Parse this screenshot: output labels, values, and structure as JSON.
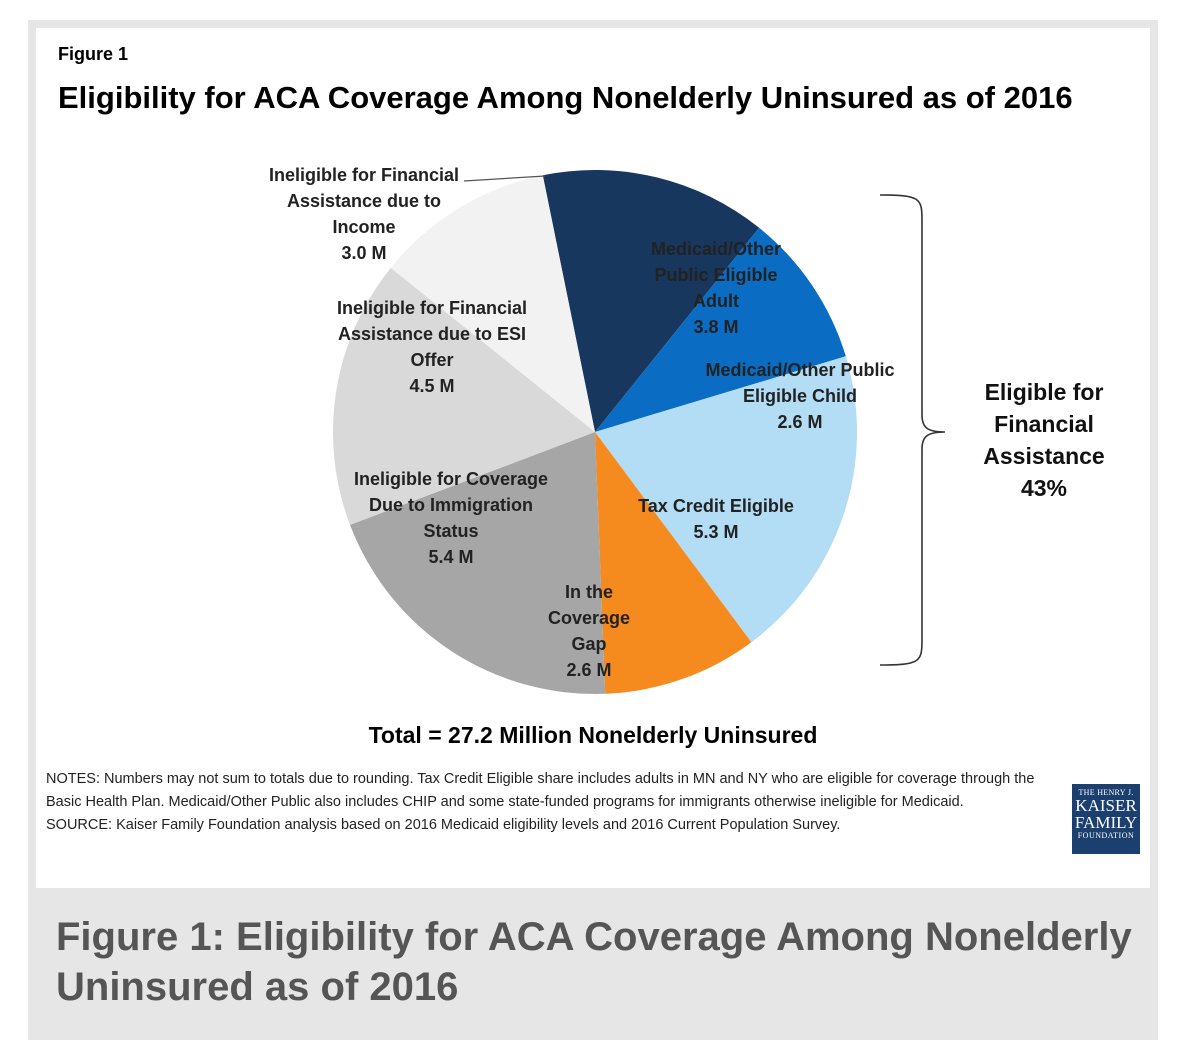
{
  "figure_label": "Figure 1",
  "caption": "Figure 1: Eligibility for ACA Coverage Among Nonelderly Uninsured as of 2016",
  "chart_data": {
    "type": "pie",
    "title": "Eligibility for ACA Coverage Among Nonelderly Uninsured as of 2016",
    "unit": "M",
    "slices": [
      {
        "id": "medicaid-adult",
        "label_lines": [
          "Medicaid/Other",
          "Public Eligible",
          "Adult"
        ],
        "value_text": "3.8 M",
        "value": 3.8,
        "color": "#17375e",
        "text_color": "#ffffff"
      },
      {
        "id": "medicaid-child",
        "label_lines": [
          "Medicaid/Other Public",
          "Eligible Child"
        ],
        "value_text": "2.6 M",
        "value": 2.6,
        "color": "#0a6cc2",
        "text_color": "#1f1f1f"
      },
      {
        "id": "tax-credit",
        "label_lines": [
          "Tax Credit Eligible"
        ],
        "value_text": "5.3 M",
        "value": 5.3,
        "color": "#b3dcf5",
        "text_color": "#1f1f1f"
      },
      {
        "id": "coverage-gap",
        "label_lines": [
          "In the",
          "Coverage",
          "Gap"
        ],
        "value_text": "2.6 M",
        "value": 2.6,
        "color": "#f58a1f",
        "text_color": "#1f1f1f"
      },
      {
        "id": "immigration",
        "label_lines": [
          "Ineligible for Coverage",
          "Due to Immigration",
          "Status"
        ],
        "value_text": "5.4 M",
        "value": 5.4,
        "color": "#a6a6a6",
        "text_color": "#1f1f1f"
      },
      {
        "id": "esi-offer",
        "label_lines": [
          "Ineligible for Financial",
          "Assistance due to ESI",
          "Offer"
        ],
        "value_text": "4.5 M",
        "value": 4.5,
        "color": "#d9d9d9",
        "text_color": "#1f1f1f"
      },
      {
        "id": "income",
        "label_lines": [
          "Ineligible for Financial",
          "Assistance due to",
          "Income"
        ],
        "value_text": "3.0 M",
        "value": 3.0,
        "color": "#f2f2f2",
        "text_color": "#1f1f1f"
      }
    ],
    "bracket_label_lines": [
      "Eligible for",
      "Financial",
      "Assistance"
    ],
    "bracket_value": "43%",
    "total": "Total = 27.2 Million Nonelderly Uninsured"
  },
  "notes": [
    "NOTES: Numbers may not sum to totals due to rounding.  Tax Credit Eligible share includes adults in MN and NY who are eligible for coverage through the Basic Health Plan. Medicaid/Other Public also includes CHIP and some state-funded programs for immigrants otherwise ineligible for Medicaid.",
    "SOURCE: Kaiser Family Foundation  analysis based on 2016 Medicaid eligibility levels and 2016 Current Population Survey."
  ],
  "logo": {
    "line1": "THE HENRY J.",
    "line2": "KAISER",
    "line3": "FAMILY",
    "line4": "FOUNDATION"
  }
}
